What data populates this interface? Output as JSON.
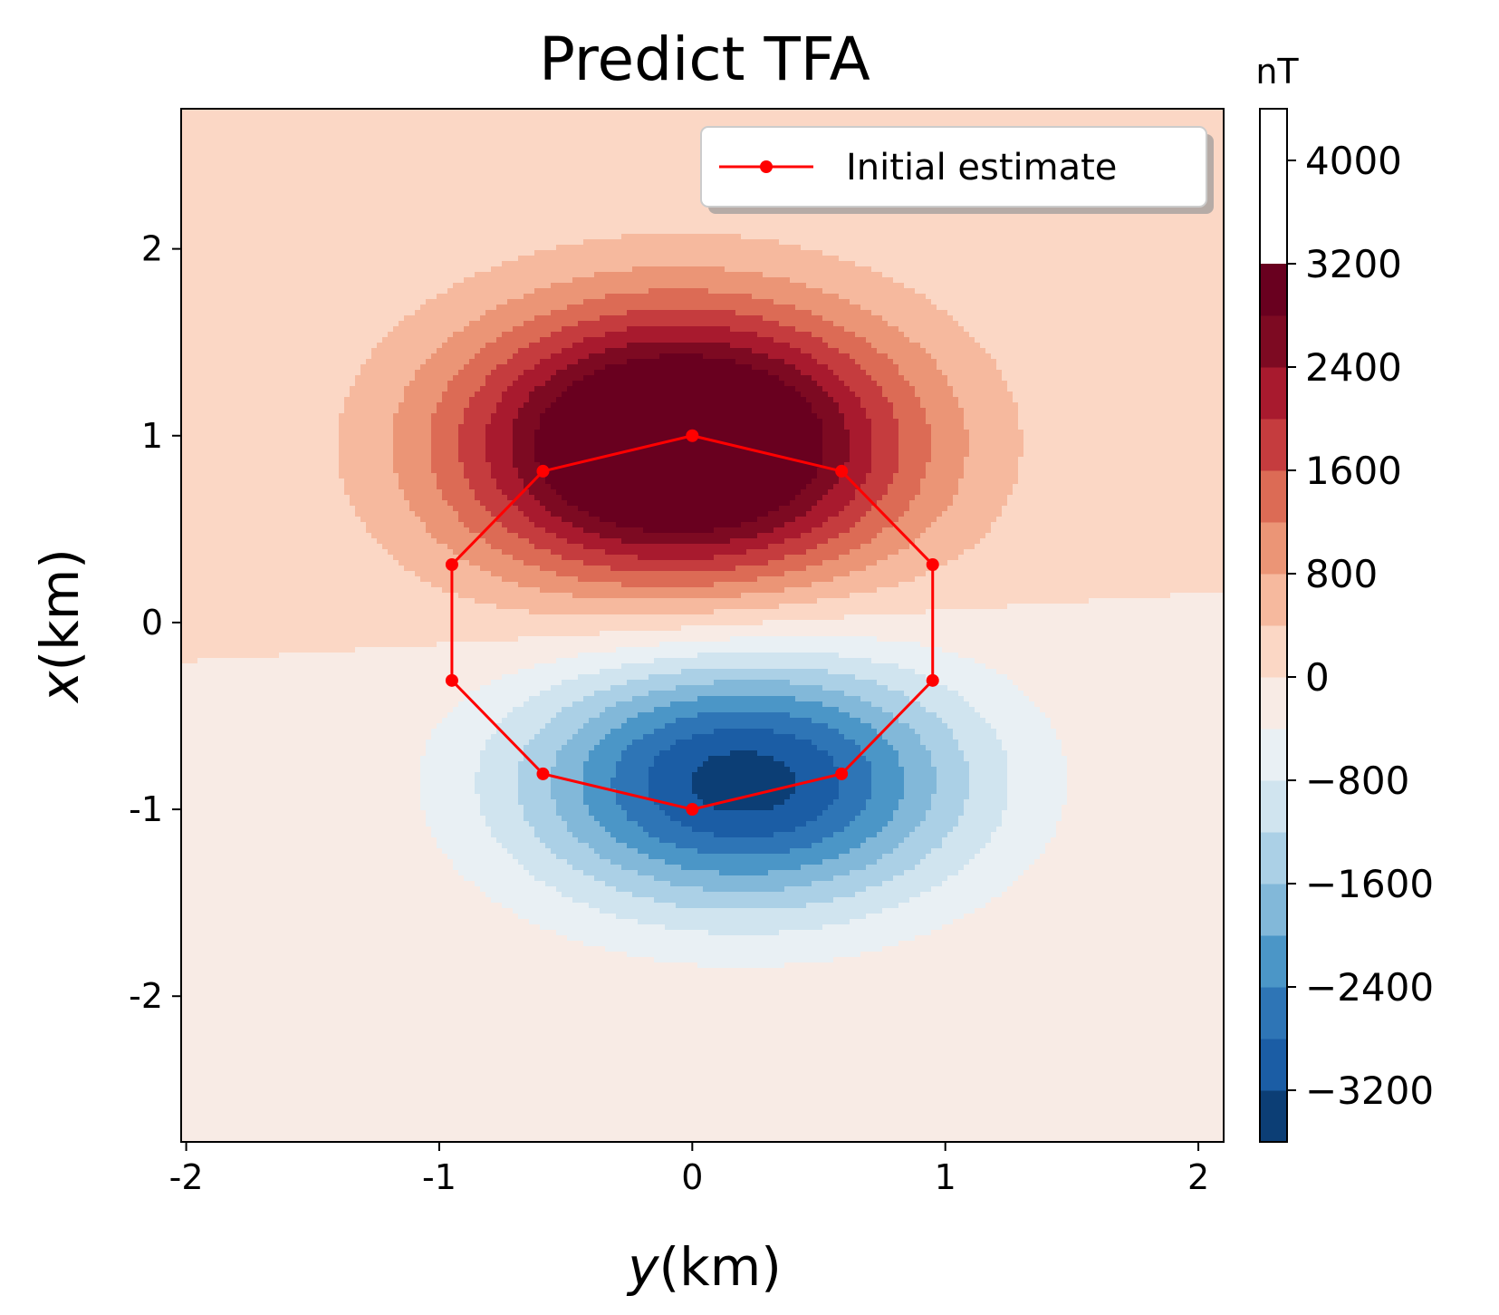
{
  "chart_data": {
    "type": "contour",
    "title": "Predict TFA",
    "xlabel": "y(km)",
    "ylabel": "x(km)",
    "xlabel_italic": "y",
    "ylabel_italic": "x",
    "axis_unit": "(km)",
    "xlim": [
      -2.02,
      2.1
    ],
    "ylim": [
      -2.78,
      2.75
    ],
    "xticks": [
      -2,
      -1,
      0,
      1,
      2
    ],
    "xtick_labels": [
      "-2",
      "-1",
      "0",
      "1",
      "2"
    ],
    "yticks": [
      -2,
      -1,
      0,
      1,
      2
    ],
    "ytick_labels": [
      "-2",
      "-1",
      "0",
      "1",
      "2"
    ],
    "colorbar": {
      "label": "nT",
      "levels": [
        -3600,
        -3200,
        -2800,
        -2400,
        -2000,
        -1600,
        -1200,
        -800,
        -400,
        0,
        400,
        800,
        1200,
        1600,
        2000,
        2400,
        2800,
        3200,
        3600,
        4000,
        4400
      ],
      "colors": [
        "#0c3e75",
        "#1b5da5",
        "#2e75b6",
        "#4b96c7",
        "#82b8d9",
        "#abd0e6",
        "#d0e4ef",
        "#e9f0f4",
        "#f8ebe5",
        "#fbd7c5",
        "#f6b99e",
        "#eb9576",
        "#dc6b55",
        "#c53c3e",
        "#a81a2e",
        "#7d0a22",
        "#69001f"
      ],
      "ticks": [
        -3200,
        -2400,
        -1600,
        -800,
        0,
        800,
        1600,
        2400,
        3200,
        4000
      ],
      "tick_labels": [
        "−3200",
        "−2400",
        "−1600",
        "−800",
        "0",
        "800",
        "1600",
        "2400",
        "3200",
        "4000"
      ]
    },
    "field_model": {
      "positive_anomaly": {
        "y": -0.05,
        "x": 0.95,
        "sy": 0.62,
        "sx": 0.52,
        "amp": 4300
      },
      "negative_anomaly": {
        "y": 0.2,
        "x": -0.85,
        "sy": 0.62,
        "sx": 0.48,
        "amp": -3400
      }
    },
    "series": [
      {
        "name": "Initial estimate",
        "color": "#ff0000",
        "marker": "o",
        "closed": true,
        "points": [
          {
            "y": 0.0,
            "x": 1.0
          },
          {
            "y": 0.59,
            "x": 0.81
          },
          {
            "y": 0.95,
            "x": 0.31
          },
          {
            "y": 0.95,
            "x": -0.31
          },
          {
            "y": 0.59,
            "x": -0.81
          },
          {
            "y": 0.0,
            "x": -1.0
          },
          {
            "y": -0.59,
            "x": -0.81
          },
          {
            "y": -0.95,
            "x": -0.31
          },
          {
            "y": -0.95,
            "x": 0.31
          },
          {
            "y": -0.59,
            "x": 0.81
          }
        ]
      }
    ],
    "legend_position": "upper right"
  }
}
